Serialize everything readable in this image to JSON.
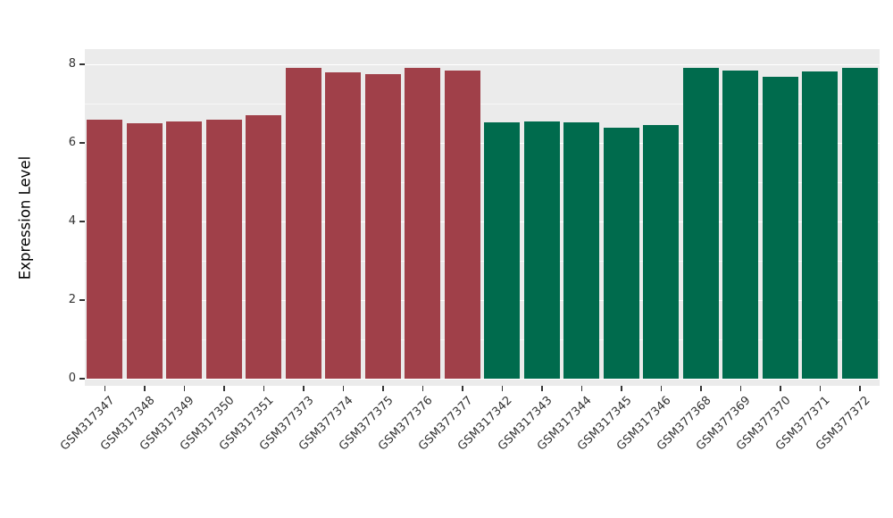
{
  "chart_data": {
    "type": "bar",
    "title": "",
    "xlabel": "",
    "ylabel": "Expression Level",
    "ylim": [
      0,
      8
    ],
    "yticks": [
      0,
      2,
      4,
      6,
      8
    ],
    "yticks_minor": [
      1,
      3,
      5,
      7
    ],
    "grid": "on",
    "legend_position": "none",
    "categories": [
      "GSM317347",
      "GSM317348",
      "GSM317349",
      "GSM317350",
      "GSM317351",
      "GSM377373",
      "GSM377374",
      "GSM377375",
      "GSM377376",
      "GSM377377",
      "GSM317342",
      "GSM317343",
      "GSM317344",
      "GSM317345",
      "GSM317346",
      "GSM377368",
      "GSM377369",
      "GSM377370",
      "GSM377371",
      "GSM377372"
    ],
    "values": [
      6.6,
      6.5,
      6.55,
      6.6,
      6.7,
      7.9,
      7.8,
      7.75,
      7.9,
      7.85,
      6.52,
      6.55,
      6.52,
      6.38,
      6.45,
      7.9,
      7.84,
      7.68,
      7.82,
      7.9
    ],
    "bar_colors": [
      "#A04049",
      "#A04049",
      "#A04049",
      "#A04049",
      "#A04049",
      "#A04049",
      "#A04049",
      "#A04049",
      "#A04049",
      "#A04049",
      "#006B4D",
      "#006B4D",
      "#006B4D",
      "#006B4D",
      "#006B4D",
      "#006B4D",
      "#006B4D",
      "#006B4D",
      "#006B4D",
      "#006B4D"
    ]
  },
  "style": {
    "panel_background": "#EBEBEB",
    "gridline_color": "#FFFFFF",
    "axis_text_color": "#333333",
    "axis_title_color": "#000000",
    "group1_color": "#A04049",
    "group2_color": "#006B4D"
  }
}
